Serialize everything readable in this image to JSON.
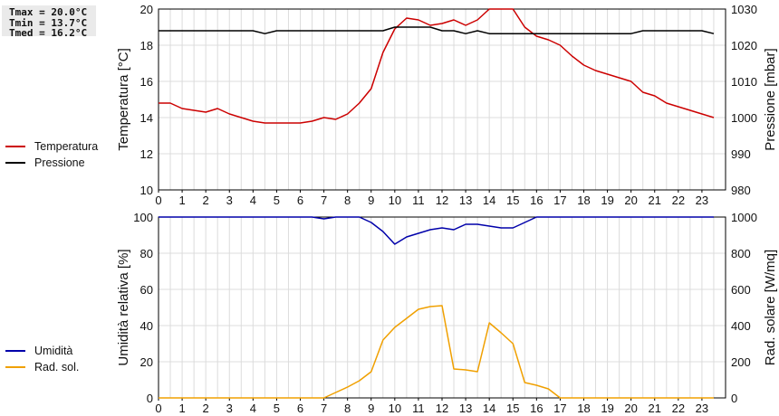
{
  "stats": {
    "tmax": "Tmax = 20.0°C",
    "tmin": "Tmin = 13.7°C",
    "tmed": "Tmed = 16.2°C"
  },
  "legend_top": [
    {
      "label": "Temperatura",
      "color": "#cc0000"
    },
    {
      "label": "Pressione",
      "color": "#000000"
    }
  ],
  "legend_bottom": [
    {
      "label": "Umidità",
      "color": "#0000aa"
    },
    {
      "label": "Rad. sol.",
      "color": "#f0a000"
    }
  ],
  "chart_data": [
    {
      "type": "line",
      "xlabel": "",
      "ylabel": "Temperatura [°C]",
      "y2label": "Pressione [mbar]",
      "xlim": [
        0,
        24
      ],
      "ylim": [
        10,
        20
      ],
      "y2lim": [
        980,
        1030
      ],
      "xticks": [
        "0",
        "1",
        "2",
        "3",
        "4",
        "5",
        "6",
        "7",
        "8",
        "9",
        "10",
        "11",
        "12",
        "13",
        "14",
        "15",
        "16",
        "17",
        "18",
        "19",
        "20",
        "21",
        "22",
        "23"
      ],
      "yticks": [
        "10",
        "12",
        "14",
        "16",
        "18",
        "20"
      ],
      "y2ticks": [
        "980",
        "990",
        "1000",
        "1010",
        "1020",
        "1030"
      ],
      "grid": true,
      "series": [
        {
          "name": "Temperatura",
          "axis": "left",
          "color": "#cc0000",
          "x": [
            0,
            0.5,
            1,
            1.5,
            2,
            2.5,
            3,
            3.5,
            4,
            4.5,
            5,
            5.5,
            6,
            6.5,
            7,
            7.5,
            8,
            8.5,
            9,
            9.5,
            10,
            10.5,
            11,
            11.5,
            12,
            12.5,
            13,
            13.5,
            14,
            14.5,
            15,
            15.5,
            16,
            16.5,
            17,
            17.5,
            18,
            18.5,
            19,
            19.5,
            20,
            20.5,
            21,
            21.5,
            22,
            22.5,
            23,
            23.5
          ],
          "values": [
            14.8,
            14.8,
            14.5,
            14.4,
            14.3,
            14.5,
            14.2,
            14.0,
            13.8,
            13.7,
            13.7,
            13.7,
            13.7,
            13.8,
            14.0,
            13.9,
            14.2,
            14.8,
            15.6,
            17.6,
            18.9,
            19.5,
            19.4,
            19.1,
            19.2,
            19.4,
            19.1,
            19.4,
            20.0,
            20.0,
            20.0,
            19.0,
            18.5,
            18.3,
            18.0,
            17.4,
            16.9,
            16.6,
            16.4,
            16.2,
            16.0,
            15.4,
            15.2,
            14.8,
            14.6,
            14.4,
            14.2,
            14.0
          ]
        },
        {
          "name": "Pressione",
          "axis": "right",
          "color": "#000000",
          "x": [
            0,
            0.5,
            1,
            1.5,
            2,
            2.5,
            3,
            3.5,
            4,
            4.5,
            5,
            5.5,
            6,
            6.5,
            7,
            7.5,
            8,
            8.5,
            9,
            9.5,
            10,
            10.5,
            11,
            11.5,
            12,
            12.5,
            13,
            13.5,
            14,
            14.5,
            15,
            15.5,
            16,
            16.5,
            17,
            17.5,
            18,
            18.5,
            19,
            19.5,
            20,
            20.5,
            21,
            21.5,
            22,
            22.5,
            23,
            23.5
          ],
          "values": [
            1024,
            1024,
            1024,
            1024,
            1024,
            1024,
            1024,
            1024,
            1024,
            1023.2,
            1024,
            1024,
            1024,
            1024,
            1024,
            1024,
            1024,
            1024,
            1024,
            1024,
            1025,
            1025,
            1025,
            1025,
            1024,
            1024,
            1023.2,
            1024,
            1023.2,
            1023.2,
            1023.2,
            1023.2,
            1023.2,
            1023.2,
            1023.2,
            1023.2,
            1023.2,
            1023.2,
            1023.2,
            1023.2,
            1023.2,
            1024,
            1024,
            1024,
            1024,
            1024,
            1024,
            1023.2
          ]
        }
      ]
    },
    {
      "type": "line",
      "xlabel": "",
      "ylabel": "Umidità relativa [%]",
      "y2label": "Rad. solare [W/mq]",
      "xlim": [
        0,
        24
      ],
      "ylim": [
        0,
        100
      ],
      "y2lim": [
        0,
        1000
      ],
      "xticks": [
        "0",
        "1",
        "2",
        "3",
        "4",
        "5",
        "6",
        "7",
        "8",
        "9",
        "10",
        "11",
        "12",
        "13",
        "14",
        "15",
        "16",
        "17",
        "18",
        "19",
        "20",
        "21",
        "22",
        "23"
      ],
      "yticks": [
        "0",
        "20",
        "40",
        "60",
        "80",
        "100"
      ],
      "y2ticks": [
        "0",
        "200",
        "400",
        "600",
        "800",
        "1000"
      ],
      "grid": true,
      "series": [
        {
          "name": "Umidità",
          "axis": "left",
          "color": "#0000aa",
          "x": [
            0,
            1,
            2,
            3,
            4,
            5,
            6,
            6.5,
            7,
            7.5,
            8,
            8.5,
            9,
            9.5,
            10,
            10.5,
            11,
            11.5,
            12,
            12.5,
            13,
            13.5,
            14,
            14.5,
            15,
            15.5,
            16,
            17,
            18,
            19,
            20,
            21,
            22,
            23,
            23.5
          ],
          "values": [
            100,
            100,
            100,
            100,
            100,
            100,
            100,
            100,
            99,
            100,
            100,
            100,
            97,
            92,
            85,
            89,
            91,
            93,
            94,
            93,
            96,
            96,
            95,
            94,
            94,
            97,
            100,
            100,
            100,
            100,
            100,
            100,
            100,
            100,
            100
          ]
        },
        {
          "name": "Rad. sol.",
          "axis": "right",
          "color": "#f0a000",
          "x": [
            0,
            1,
            2,
            3,
            4,
            5,
            6,
            6.5,
            7,
            7.5,
            8,
            8.5,
            9,
            9.5,
            10,
            10.5,
            11,
            11.5,
            12,
            12.5,
            13,
            13.5,
            14,
            14.5,
            15,
            15.5,
            16,
            16.5,
            17,
            18,
            19,
            20,
            21,
            22,
            23,
            23.5
          ],
          "values": [
            0,
            0,
            0,
            0,
            0,
            0,
            0,
            0,
            0,
            30,
            60,
            95,
            145,
            320,
            390,
            440,
            490,
            505,
            510,
            160,
            155,
            145,
            415,
            360,
            300,
            85,
            70,
            50,
            0,
            0,
            0,
            0,
            0,
            0,
            0,
            0
          ]
        }
      ]
    }
  ]
}
